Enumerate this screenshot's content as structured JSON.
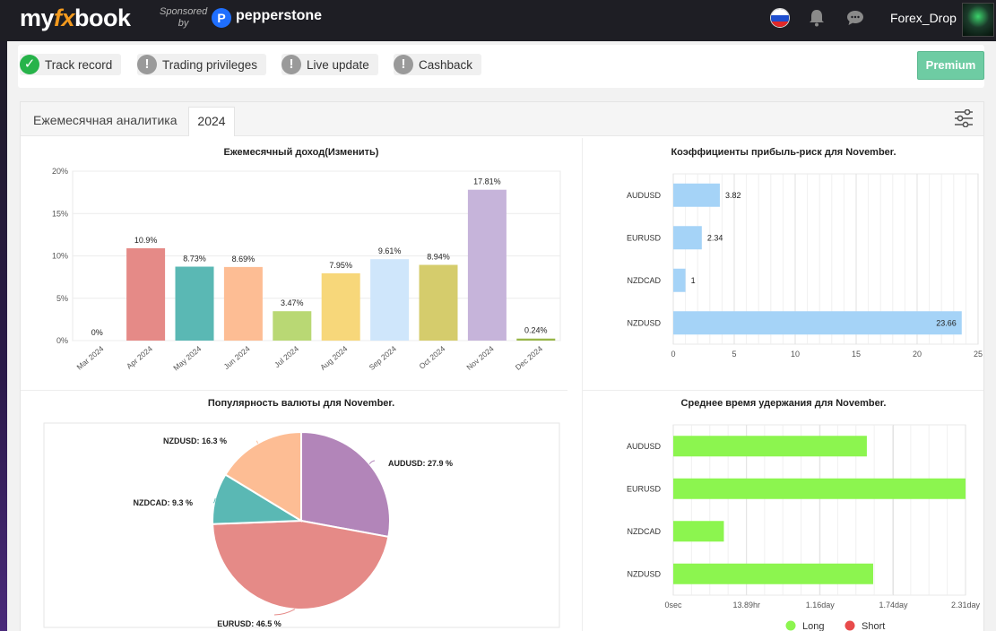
{
  "header": {
    "logo_left": "my",
    "logo_fx": "fx",
    "logo_right": "book",
    "sponsored_1": "Sponsored",
    "sponsored_2": "by",
    "sponsor_mark": "P",
    "sponsor_name": "pepperstone",
    "username": "Forex_Drop",
    "icons": [
      "flag-russia-icon",
      "bell-icon",
      "chat-icon"
    ]
  },
  "status": {
    "items": [
      {
        "label": "Track record",
        "state": "ok"
      },
      {
        "label": "Trading privileges",
        "state": "warn"
      },
      {
        "label": "Live update",
        "state": "warn"
      },
      {
        "label": "Cashback",
        "state": "warn"
      }
    ],
    "check_mark": "✓",
    "warn_mark": "!",
    "premium_label": "Premium"
  },
  "panel": {
    "title": "Ежемесячная аналитика",
    "year_tab": "2024"
  },
  "colors": {
    "green_check": "#27b34a",
    "premium": "#6ecca3",
    "hbar_blue": "#a5d3f7",
    "hbar_green": "#8cf54f"
  },
  "chart_data": [
    {
      "type": "bar",
      "title": "Ежемесячный доход(Изменить)",
      "categories": [
        "Mar 2024",
        "Apr 2024",
        "May 2024",
        "Jun 2024",
        "Jul 2024",
        "Aug 2024",
        "Sep 2024",
        "Oct 2024",
        "Nov 2024",
        "Dec 2024"
      ],
      "values": [
        0,
        10.9,
        8.73,
        8.69,
        3.47,
        7.95,
        9.61,
        8.94,
        17.81,
        0.24
      ],
      "data_labels": [
        "0%",
        "10.9%",
        "8.73%",
        "8.69%",
        "3.47%",
        "7.95%",
        "9.61%",
        "8.94%",
        "17.81%",
        "0.24%"
      ],
      "colors": [
        "#e8e8e8",
        "#e58a87",
        "#5ab8b4",
        "#fdbd94",
        "#b9d874",
        "#f7d77a",
        "#cfe6fb",
        "#d5cc6c",
        "#c6b4da",
        "#98b648"
      ],
      "ylim": [
        0,
        20
      ],
      "y_ticks": [
        "0%",
        "5%",
        "10%",
        "15%",
        "20%"
      ],
      "y_tick_values": [
        0,
        5,
        10,
        15,
        20
      ],
      "grid": true
    },
    {
      "type": "bar",
      "orientation": "horizontal",
      "title": "Коэффициенты прибыль-риск для November.",
      "categories": [
        "AUDUSD",
        "EURUSD",
        "NZDCAD",
        "NZDUSD"
      ],
      "values": [
        3.82,
        2.34,
        1,
        23.66
      ],
      "data_labels": [
        "3.82",
        "2.34",
        "1",
        "23.66"
      ],
      "xlim": [
        0,
        25
      ],
      "x_ticks": [
        "0",
        "5",
        "10",
        "15",
        "20",
        "25"
      ],
      "x_tick_values": [
        0,
        5,
        10,
        15,
        20,
        25
      ],
      "grid": true
    },
    {
      "type": "pie",
      "title": "Популярность валюты для November.",
      "slices": [
        {
          "name": "AUDUSD",
          "value": 27.9,
          "label": "AUDUSD: 27.9 %",
          "color": "#b285b9"
        },
        {
          "name": "EURUSD",
          "value": 46.5,
          "label": "EURUSD: 46.5 %",
          "color": "#e58a87"
        },
        {
          "name": "NZDCAD",
          "value": 9.3,
          "label": "NZDCAD: 9.3 %",
          "color": "#5ab8b4"
        },
        {
          "name": "NZDUSD",
          "value": 16.3,
          "label": "NZDUSD: 16.3 %",
          "color": "#fdbd94"
        }
      ]
    },
    {
      "type": "bar",
      "orientation": "horizontal",
      "title": "Среднее время удержания для November.",
      "categories": [
        "AUDUSD",
        "EURUSD",
        "NZDCAD",
        "NZDUSD"
      ],
      "values_days": [
        1.53,
        2.31,
        0.4,
        1.58
      ],
      "xlim": [
        0,
        2.31
      ],
      "x_ticks": [
        "0sec",
        "13.89hr",
        "1.16day",
        "1.74day",
        "2.31day"
      ],
      "x_tick_values": [
        0,
        0.579,
        1.16,
        1.74,
        2.31
      ],
      "legend": {
        "position": "bottom",
        "items": [
          {
            "name": "Long",
            "color": "#8cf54f"
          },
          {
            "name": "Short",
            "color": "#e84b4b"
          }
        ]
      },
      "grid": true
    }
  ]
}
